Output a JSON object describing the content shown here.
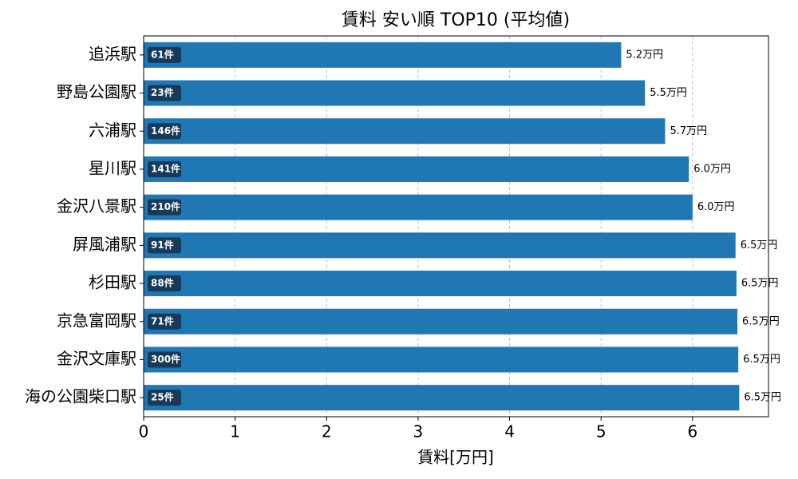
{
  "chart_data": {
    "type": "barh",
    "title": "賃料 安い順 TOP10 (平均値)",
    "x_label": "賃料[万円]",
    "categories": [
      "追浜駅",
      "野島公園駅",
      "六浦駅",
      "星川駅",
      "金沢八景駅",
      "屏風浦駅",
      "杉田駅",
      "京急富岡駅",
      "金沢文庫駅",
      "海の公園柴口駅"
    ],
    "values": [
      5.22,
      5.48,
      5.7,
      5.96,
      6.0,
      6.47,
      6.48,
      6.49,
      6.5,
      6.51
    ],
    "value_labels": [
      "5.2万円",
      "5.5万円",
      "5.7万円",
      "6.0万円",
      "6.0万円",
      "6.5万円",
      "6.5万円",
      "6.5万円",
      "6.5万円",
      "6.5万円"
    ],
    "count_labels": [
      "61件",
      "23件",
      "146件",
      "141件",
      "210件",
      "91件",
      "88件",
      "71件",
      "300件",
      "25件"
    ],
    "color": "#1f77b4",
    "badge_color": "#163a5a",
    "xlim": [
      0,
      6.83
    ],
    "xticks": [
      0,
      1,
      2,
      3,
      4,
      5,
      6
    ],
    "grid": true
  }
}
